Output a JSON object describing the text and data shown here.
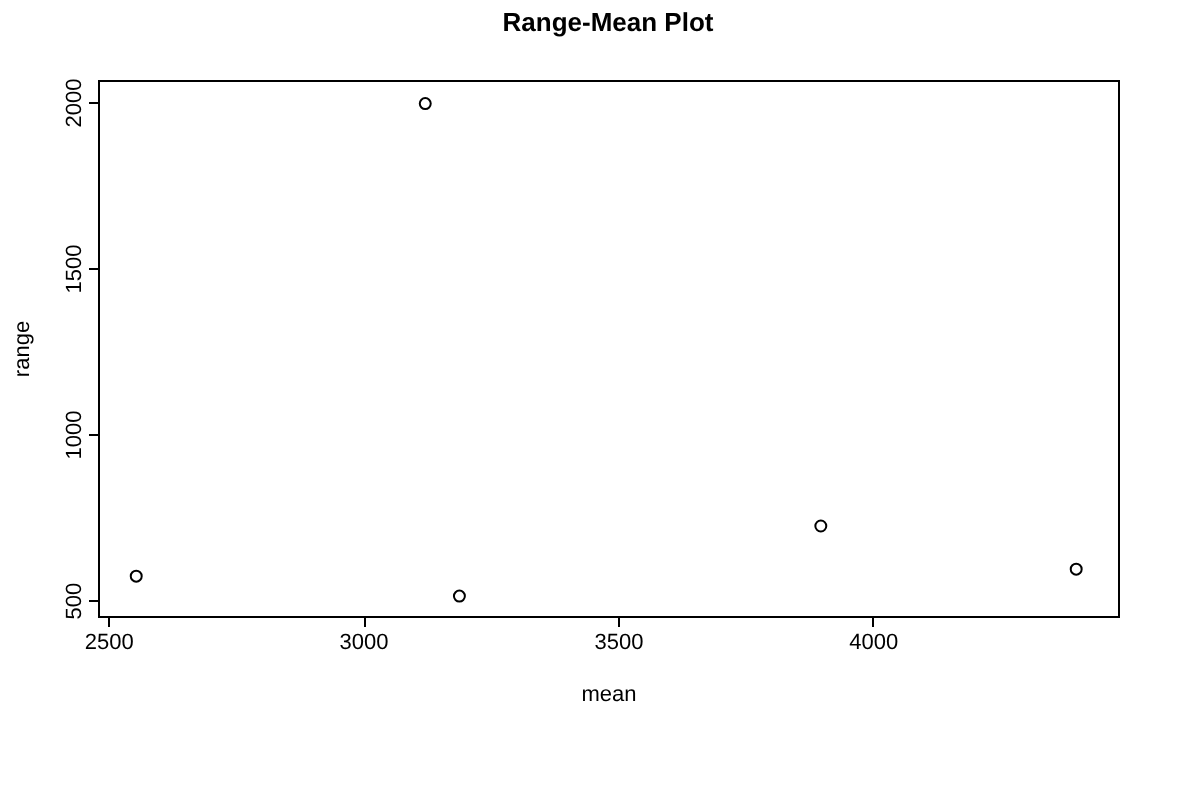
{
  "chart_data": {
    "type": "scatter",
    "title": "Range-Mean Plot",
    "xlabel": "mean",
    "ylabel": "range",
    "x": [
      2555,
      3122,
      3189,
      3898,
      4399
    ],
    "series": [
      {
        "color": "#000000",
        "values": [
          572,
          1995,
          512,
          723,
          593
        ]
      }
    ],
    "xlim": [
      2480,
      4481
    ],
    "ylim": [
      452,
      2066
    ],
    "xticks": [
      2500,
      3000,
      3500,
      4000
    ],
    "yticks": [
      500,
      1000,
      1500,
      2000
    ],
    "marker": "circle",
    "grid": false,
    "legend": false
  }
}
